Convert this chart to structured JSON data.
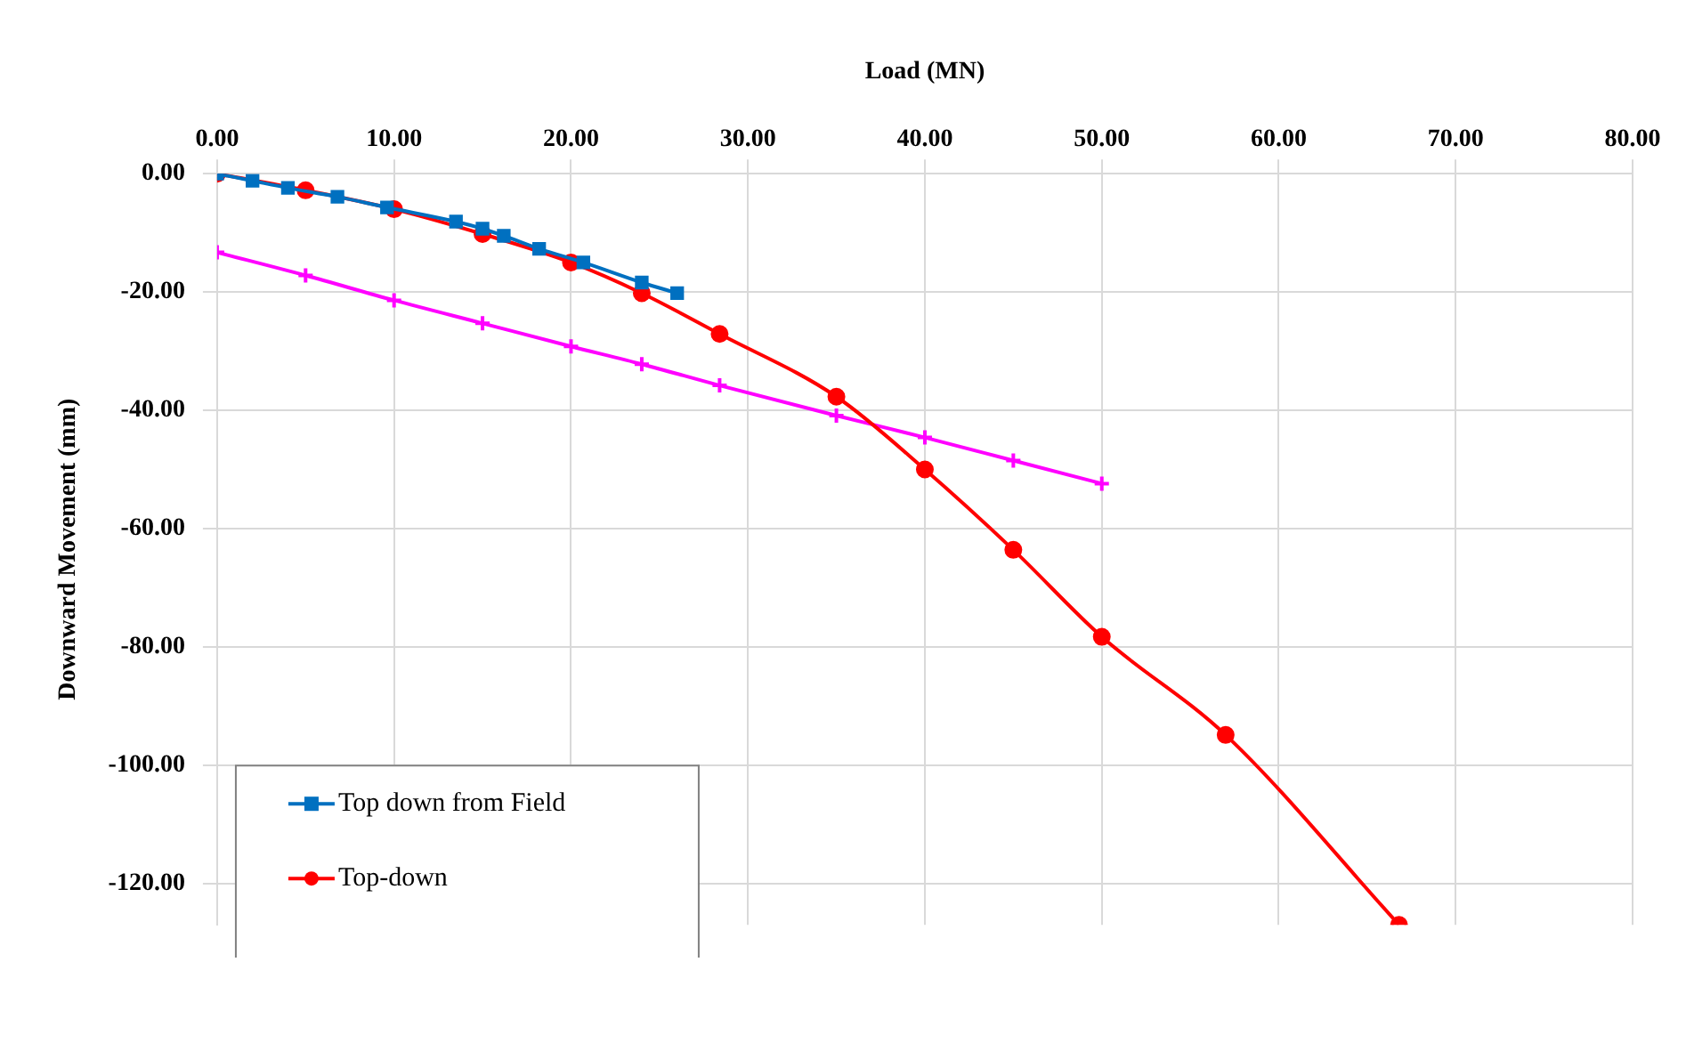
{
  "chart_data": {
    "type": "line",
    "xlabel": "Load (MN)",
    "ylabel": "Downward Movement (mm)",
    "xlim": [
      0,
      80
    ],
    "xticks": [
      {
        "value": 0,
        "label": "0.00"
      },
      {
        "value": 10,
        "label": "10.00"
      },
      {
        "value": 20,
        "label": "20.00"
      },
      {
        "value": 30,
        "label": "30.00"
      },
      {
        "value": 40,
        "label": "40.00"
      },
      {
        "value": 50,
        "label": "50.00"
      },
      {
        "value": 60,
        "label": "60.00"
      },
      {
        "value": 70,
        "label": "70.00"
      },
      {
        "value": 80,
        "label": "80.00"
      }
    ],
    "ylim": [
      -127,
      0
    ],
    "yticks": [
      {
        "value": 0,
        "label": "0.00"
      },
      {
        "value": -20,
        "label": "-20.00"
      },
      {
        "value": -40,
        "label": "-40.00"
      },
      {
        "value": -60,
        "label": "-60.00"
      },
      {
        "value": -80,
        "label": "-80.00"
      },
      {
        "value": -100,
        "label": "-100.00"
      },
      {
        "value": -120,
        "label": "-120.00"
      }
    ],
    "grid": true,
    "legend": "bottom left",
    "series": [
      {
        "name": "Top down from Field",
        "color": "#0070c0",
        "marker": "square",
        "x": [
          0,
          2,
          4,
          6.8,
          9.6,
          13.5,
          15,
          16.2,
          18.2,
          20.7,
          24,
          26
        ],
        "values": [
          0,
          -1.2,
          -2.4,
          -3.9,
          -5.7,
          -8.1,
          -9.3,
          -10.5,
          -12.7,
          -15,
          -18.4,
          -20.2
        ]
      },
      {
        "name": "Top-down",
        "color": "#ff0000",
        "marker": "circle",
        "x": [
          0,
          5,
          10,
          15,
          20,
          24,
          28.4,
          35,
          40,
          45,
          50,
          57,
          66.8
        ],
        "values": [
          0,
          -2.8,
          -6,
          -10.2,
          -15,
          -20.2,
          -27.1,
          -37.7,
          -50,
          -63.6,
          -78.3,
          -94.9,
          -127
        ]
      },
      {
        "color": "#ff00ff",
        "marker": "cross",
        "x": [
          0,
          5,
          10,
          15,
          20,
          24,
          28.4,
          35,
          40,
          45,
          50
        ],
        "values": [
          -13.3,
          -17.2,
          -21.4,
          -25.3,
          -29.2,
          -32.2,
          -35.8,
          -40.9,
          -44.6,
          -48.5,
          -52.4
        ]
      }
    ]
  }
}
